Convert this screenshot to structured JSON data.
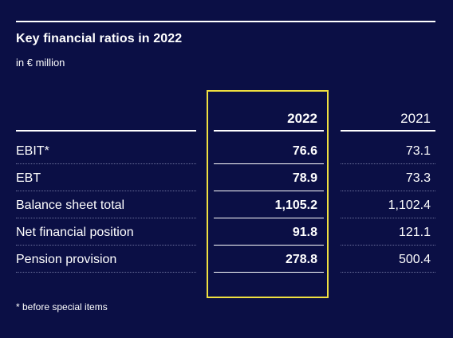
{
  "title": "Key financial ratios in 2022",
  "subtitle": "in € million",
  "columns": [
    "2022",
    "2021"
  ],
  "rows": [
    {
      "label": "EBIT*",
      "v2022": "76.6",
      "v2021": "73.1"
    },
    {
      "label": "EBT",
      "v2022": "78.9",
      "v2021": "73.3"
    },
    {
      "label": "Balance sheet total",
      "v2022": "1,105.2",
      "v2021": "1,102.4"
    },
    {
      "label": "Net financial position",
      "v2022": "91.8",
      "v2021": "121.1"
    },
    {
      "label": "Pension provision",
      "v2022": "278.8",
      "v2021": "500.4"
    }
  ],
  "footnote": "* before special items",
  "colors": {
    "background": "#0b0f45",
    "highlight": "#f0e040",
    "text": "#ffffff"
  }
}
